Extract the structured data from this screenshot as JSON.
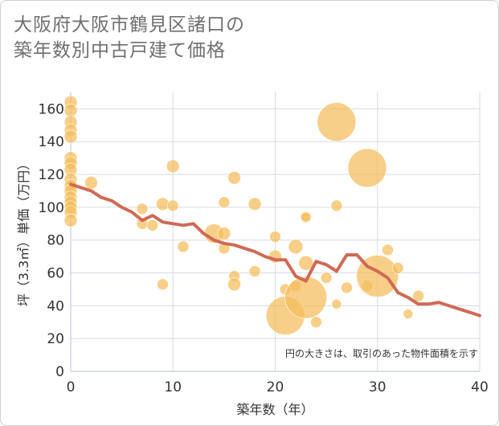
{
  "title_line1": "大阪府大阪市鶴見区諸口の",
  "title_line2": "築年数別中古戸建て価格",
  "chart_data": {
    "type": "scatter",
    "title": "大阪府大阪市鶴見区諸口の築年数別中古戸建て価格",
    "xlabel": "築年数（年）",
    "ylabel": "坪（3.3㎡）単価（万円）",
    "xlim": [
      0,
      40
    ],
    "ylim": [
      0,
      170
    ],
    "xticks": [
      0,
      10,
      20,
      30,
      40
    ],
    "yticks": [
      0,
      20,
      40,
      60,
      80,
      100,
      120,
      140,
      160
    ],
    "grid": true,
    "note": "円の大きさは、取引のあった物件面積を示す",
    "bubble_color": "#f5bd5c",
    "line_color": "#cf6a55",
    "bubbles": [
      {
        "x": 0,
        "y": 164,
        "s": 4
      },
      {
        "x": 0,
        "y": 159,
        "s": 4
      },
      {
        "x": 0,
        "y": 152,
        "s": 4
      },
      {
        "x": 0,
        "y": 147,
        "s": 4
      },
      {
        "x": 0,
        "y": 143,
        "s": 4
      },
      {
        "x": 0,
        "y": 130,
        "s": 4
      },
      {
        "x": 0,
        "y": 127,
        "s": 4
      },
      {
        "x": 0,
        "y": 123,
        "s": 4
      },
      {
        "x": 0,
        "y": 117,
        "s": 4
      },
      {
        "x": 0,
        "y": 113,
        "s": 4
      },
      {
        "x": 0,
        "y": 110,
        "s": 4
      },
      {
        "x": 0,
        "y": 106,
        "s": 4
      },
      {
        "x": 0,
        "y": 103,
        "s": 4
      },
      {
        "x": 0,
        "y": 100,
        "s": 4
      },
      {
        "x": 0,
        "y": 97,
        "s": 4
      },
      {
        "x": 0,
        "y": 92,
        "s": 4
      },
      {
        "x": 2,
        "y": 115,
        "s": 4
      },
      {
        "x": 7,
        "y": 99,
        "s": 3.5
      },
      {
        "x": 7,
        "y": 90,
        "s": 3.5
      },
      {
        "x": 8,
        "y": 89,
        "s": 3.5
      },
      {
        "x": 9,
        "y": 102,
        "s": 4
      },
      {
        "x": 9,
        "y": 53,
        "s": 3.5
      },
      {
        "x": 10,
        "y": 125,
        "s": 4
      },
      {
        "x": 10,
        "y": 101,
        "s": 3.5
      },
      {
        "x": 11,
        "y": 76,
        "s": 3.5
      },
      {
        "x": 14,
        "y": 84,
        "s": 6
      },
      {
        "x": 15,
        "y": 103,
        "s": 3.5
      },
      {
        "x": 15,
        "y": 84,
        "s": 4
      },
      {
        "x": 15,
        "y": 75,
        "s": 3.5
      },
      {
        "x": 16,
        "y": 118,
        "s": 4
      },
      {
        "x": 16,
        "y": 58,
        "s": 3.5
      },
      {
        "x": 16,
        "y": 53,
        "s": 4
      },
      {
        "x": 18,
        "y": 102,
        "s": 4
      },
      {
        "x": 18,
        "y": 61,
        "s": 3.5
      },
      {
        "x": 20,
        "y": 82,
        "s": 3.5
      },
      {
        "x": 20,
        "y": 70,
        "s": 4
      },
      {
        "x": 21,
        "y": 50,
        "s": 3.5
      },
      {
        "x": 21,
        "y": 34,
        "s": 12
      },
      {
        "x": 22,
        "y": 76,
        "s": 4.5
      },
      {
        "x": 22,
        "y": 52,
        "s": 3.5
      },
      {
        "x": 23,
        "y": 94,
        "s": 3.5
      },
      {
        "x": 23,
        "y": 94,
        "s": 3
      },
      {
        "x": 23,
        "y": 66,
        "s": 4.5
      },
      {
        "x": 23,
        "y": 45,
        "s": 13
      },
      {
        "x": 24,
        "y": 30,
        "s": 3.5
      },
      {
        "x": 25,
        "y": 57,
        "s": 3.5
      },
      {
        "x": 26,
        "y": 152,
        "s": 12
      },
      {
        "x": 26,
        "y": 101,
        "s": 3.5
      },
      {
        "x": 26,
        "y": 41,
        "s": 3
      },
      {
        "x": 27,
        "y": 51,
        "s": 3.5
      },
      {
        "x": 29,
        "y": 124,
        "s": 12
      },
      {
        "x": 29,
        "y": 52,
        "s": 3.5
      },
      {
        "x": 30,
        "y": 58,
        "s": 13
      },
      {
        "x": 31,
        "y": 74,
        "s": 3.5
      },
      {
        "x": 32,
        "y": 63,
        "s": 3.5
      },
      {
        "x": 33,
        "y": 35,
        "s": 3
      },
      {
        "x": 34,
        "y": 46,
        "s": 3.5
      }
    ],
    "line": {
      "x": [
        0,
        1,
        2,
        3,
        4,
        5,
        6,
        7,
        8,
        9,
        10,
        11,
        12,
        13,
        14,
        15,
        16,
        17,
        18,
        19,
        20,
        21,
        22,
        23,
        24,
        25,
        26,
        27,
        28,
        29,
        30,
        31,
        32,
        33,
        34,
        35,
        36,
        37,
        38,
        39,
        40
      ],
      "y": [
        114,
        112,
        110,
        106,
        104,
        100,
        97,
        92,
        95,
        91,
        90,
        89,
        90,
        84,
        80,
        78,
        77,
        75,
        73,
        70,
        68,
        68,
        58,
        55,
        67,
        65,
        61,
        71,
        71,
        64,
        61,
        57,
        48,
        45,
        41,
        41,
        42,
        40,
        38,
        36,
        34
      ]
    }
  }
}
